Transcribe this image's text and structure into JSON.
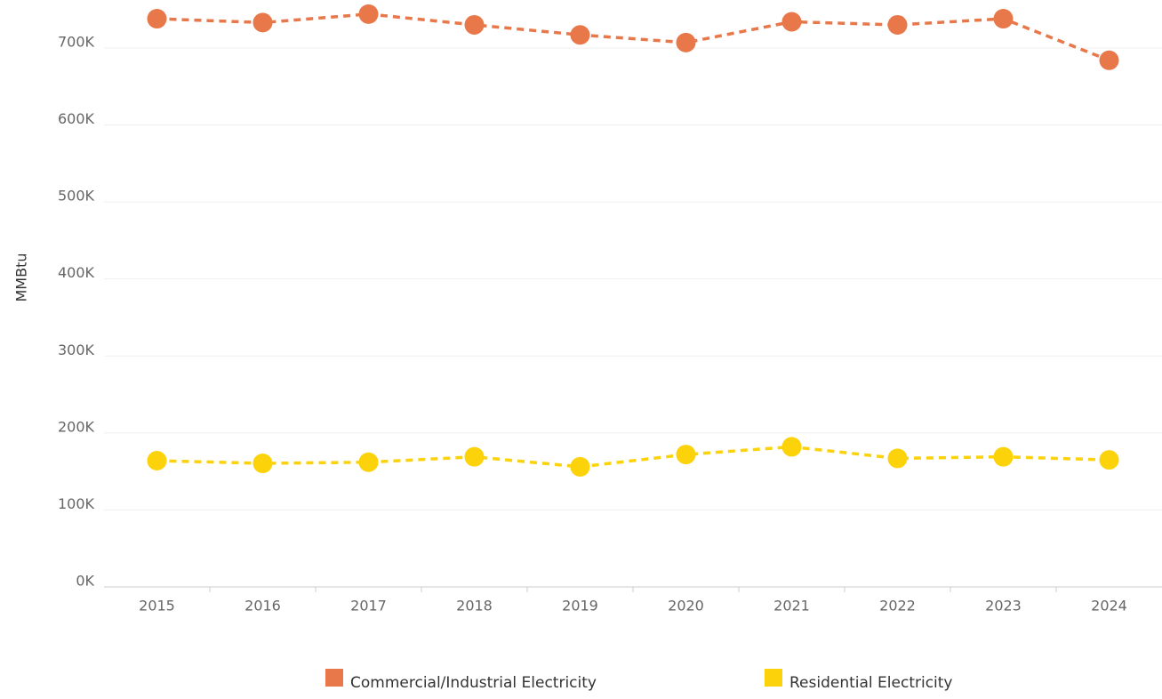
{
  "chart_data": {
    "type": "line",
    "y_label": "MMBtu",
    "categories": [
      "2015",
      "2016",
      "2017",
      "2018",
      "2019",
      "2020",
      "2021",
      "2022",
      "2023",
      "2024"
    ],
    "series": [
      {
        "name": "Commercial/Industrial Electricity",
        "color": "#e8784a",
        "values": [
          738000,
          733000,
          744000,
          730000,
          717000,
          707000,
          734000,
          730000,
          738000,
          684000
        ]
      },
      {
        "name": "Residential Electricity",
        "color": "#fcd20a",
        "values": [
          164000,
          160500,
          162000,
          169000,
          156000,
          172000,
          182000,
          167000,
          169000,
          165000
        ]
      }
    ],
    "ylim": [
      0,
      760000
    ],
    "yticks": [
      {
        "value": 0,
        "label": "0K"
      },
      {
        "value": 100000,
        "label": "100K"
      },
      {
        "value": 200000,
        "label": "200K"
      },
      {
        "value": 300000,
        "label": "300K"
      },
      {
        "value": 400000,
        "label": "400K"
      },
      {
        "value": 500000,
        "label": "500K"
      },
      {
        "value": 600000,
        "label": "600K"
      },
      {
        "value": 700000,
        "label": "700K"
      }
    ],
    "grid": true,
    "line_style": "dashed",
    "legend": "bottom"
  }
}
